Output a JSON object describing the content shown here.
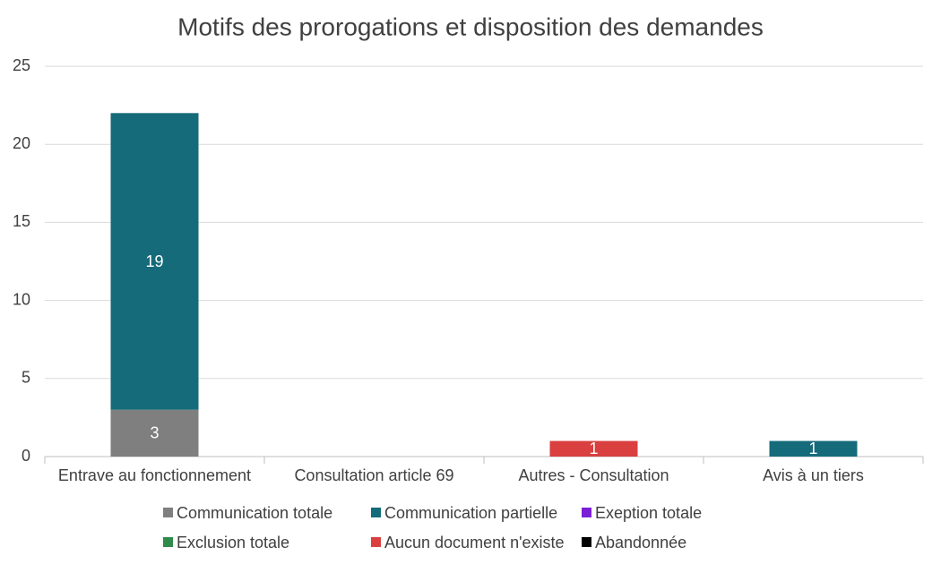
{
  "chart_data": {
    "type": "stacked_bar",
    "title": "Motifs des prorogations et disposition des demandes",
    "categories": [
      "Entrave au fonctionnement",
      "Consultation article 69",
      "Autres - Consultation",
      "Avis à un tiers"
    ],
    "series": [
      {
        "name": "Communication totale",
        "color": "#7f7f7f",
        "values": [
          3,
          0,
          0,
          0
        ]
      },
      {
        "name": "Communication partielle",
        "color": "#156b7a",
        "values": [
          19,
          0,
          0,
          1
        ]
      },
      {
        "name": "Exeption totale",
        "color": "#7a1fd6",
        "values": [
          0,
          0,
          0,
          0
        ]
      },
      {
        "name": "Exclusion totale",
        "color": "#2e8b4a",
        "values": [
          0,
          0,
          0,
          0
        ]
      },
      {
        "name": "Aucun document n'existe",
        "color": "#d9403f",
        "values": [
          0,
          0,
          1,
          0
        ]
      },
      {
        "name": "Abandonnée",
        "color": "#000000",
        "values": [
          0,
          0,
          0,
          0
        ]
      }
    ],
    "ylim": [
      0,
      25
    ],
    "yticks": [
      0,
      5,
      10,
      15,
      20,
      25
    ],
    "grid": true,
    "legend": "bottom"
  }
}
